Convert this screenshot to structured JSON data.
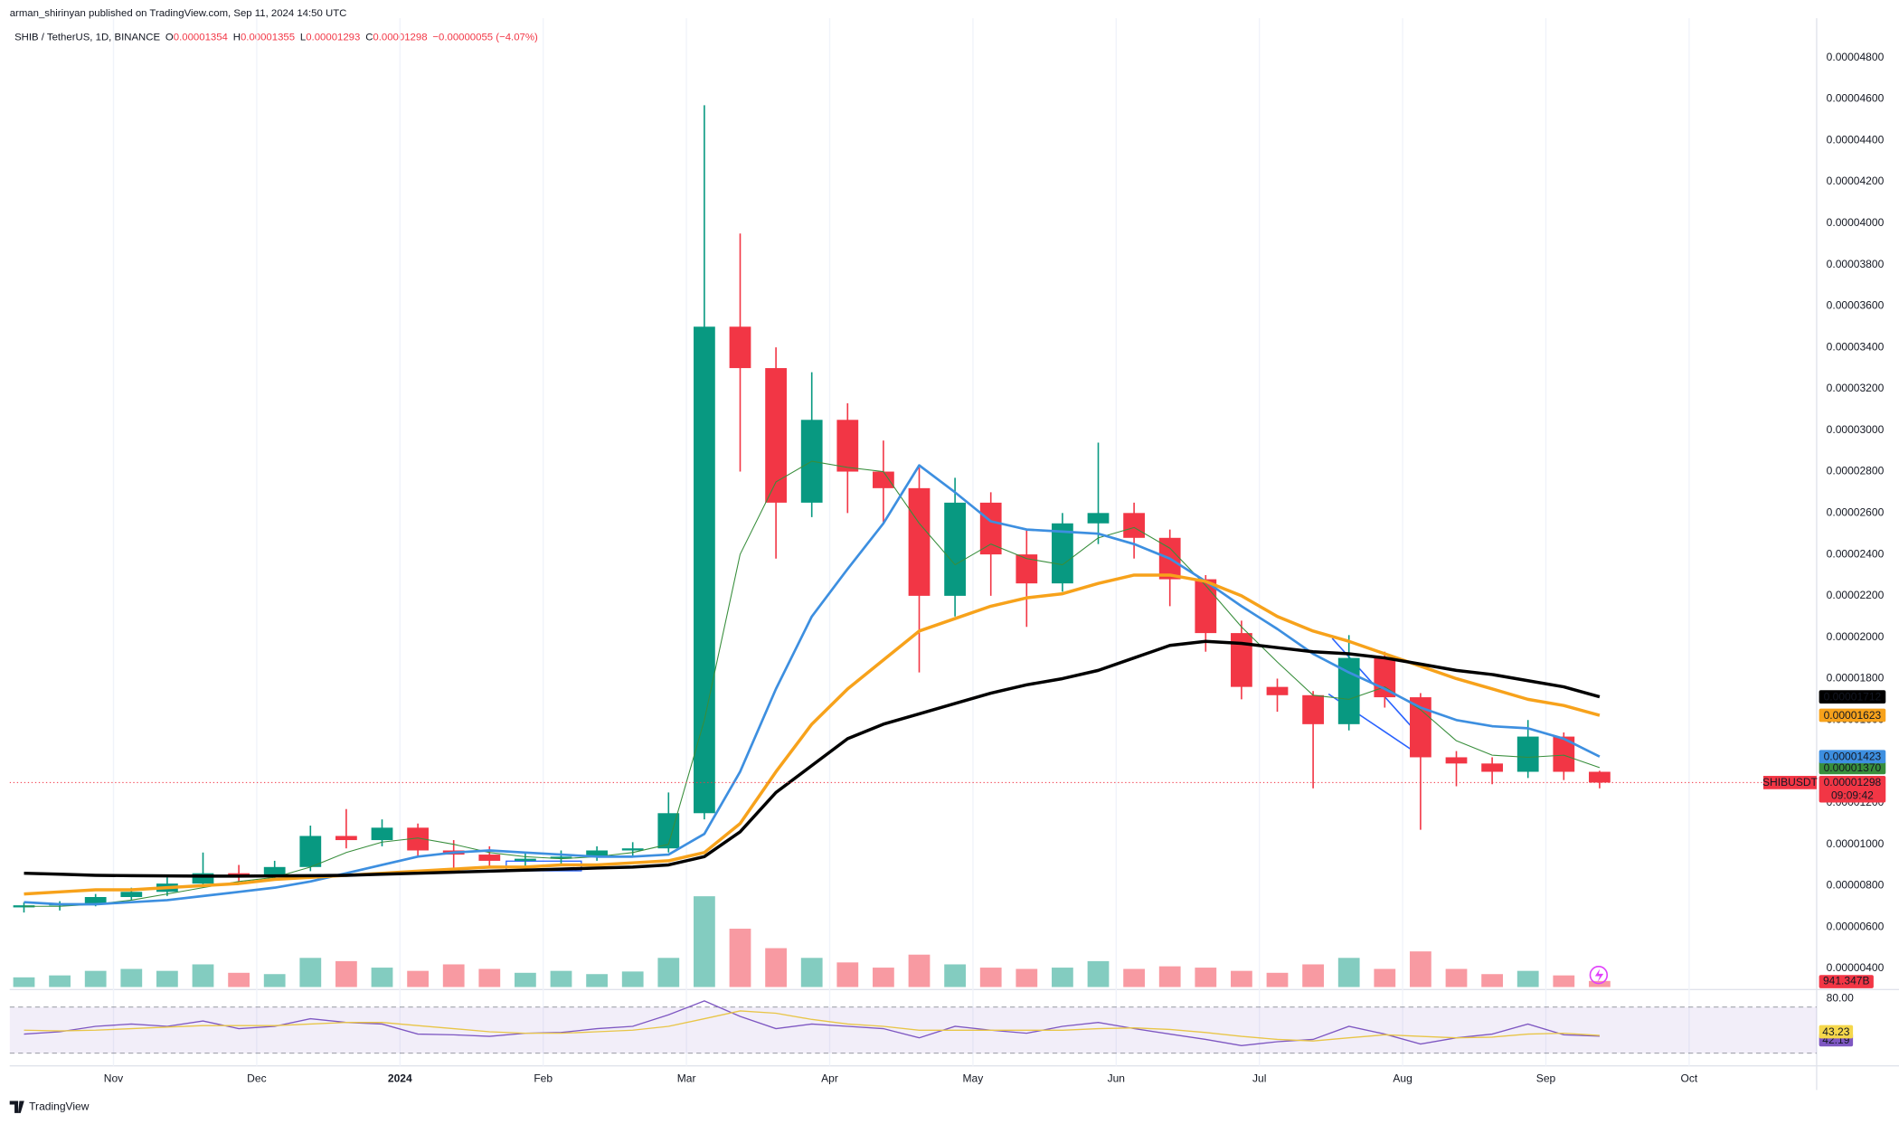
{
  "header": {
    "publisher": "arman_shirinyan published on TradingView.com, Sep 11, 2024 14:50 UTC",
    "symbol": "SHIB / TetherUS, 1D, BINANCE",
    "ohlc": [
      {
        "key": "O",
        "value": "0.00001354"
      },
      {
        "key": "H",
        "value": "0.00001355"
      },
      {
        "key": "L",
        "value": "0.00001293"
      },
      {
        "key": "C",
        "value": "0.00001298"
      }
    ],
    "change": "−0.00000055 (−4.07%)"
  },
  "chart_data": [
    {
      "type": "candlestick",
      "symbol_label": "SHIBUSDT",
      "close_label": "0.00001298",
      "countdown": "09:09:42",
      "up_color": "#089981",
      "down_color": "#f23645",
      "categories": [
        null,
        null,
        null,
        "Nov",
        null,
        null,
        null,
        "Dec",
        null,
        null,
        null,
        "2024",
        null,
        null,
        null,
        "Feb",
        null,
        null,
        null,
        "Mar",
        null,
        null,
        null,
        "Apr",
        null,
        null,
        null,
        "May",
        null,
        null,
        null,
        "Jun",
        null,
        null,
        null,
        "Jul",
        null,
        null,
        null,
        "Aug",
        null,
        null,
        null,
        "Sep",
        null,
        null,
        null,
        "Oct"
      ],
      "open": [
        6.95e-06,
        7.05e-06,
        7.1e-06,
        7.45e-06,
        7.7e-06,
        8.1e-06,
        8.6e-06,
        8.5e-06,
        8.9e-06,
        1.04e-05,
        1.02e-05,
        1.08e-05,
        9.7e-06,
        9.5e-06,
        9.2e-06,
        9.3e-06,
        9.4e-06,
        9.7e-06,
        9.8e-06,
        1.15e-05,
        3.5e-05,
        3.3e-05,
        2.65e-05,
        3.05e-05,
        2.8e-05,
        2.72e-05,
        2.2e-05,
        2.65e-05,
        2.4e-05,
        2.26e-05,
        2.55e-05,
        2.6e-05,
        2.48e-05,
        2.28e-05,
        2.02e-05,
        1.76e-05,
        1.72e-05,
        1.58e-05,
        1.9e-05,
        1.71e-05,
        1.42e-05,
        1.39e-05,
        1.35e-05,
        1.52e-05,
        1.35e-05,
        null,
        null,
        null
      ],
      "high": [
        7.2e-06,
        7.25e-06,
        7.6e-06,
        7.9e-06,
        8.4e-06,
        9.6e-06,
        9e-06,
        9.2e-06,
        1.09e-05,
        1.17e-05,
        1.12e-05,
        1.1e-05,
        1.02e-05,
        9.9e-06,
        9.6e-06,
        9.7e-06,
        9.9e-06,
        1.01e-05,
        1.25e-05,
        4.57e-05,
        3.95e-05,
        3.4e-05,
        3.28e-05,
        3.13e-05,
        2.95e-05,
        2.82e-05,
        2.77e-05,
        2.7e-05,
        2.52e-05,
        2.6e-05,
        2.94e-05,
        2.65e-05,
        2.52e-05,
        2.3e-05,
        2.08e-05,
        1.8e-05,
        1.74e-05,
        2.01e-05,
        1.93e-05,
        1.73e-05,
        1.45e-05,
        1.42e-05,
        1.6e-05,
        1.54e-05,
        1.355e-05,
        null,
        null,
        null
      ],
      "low": [
        6.7e-06,
        6.8e-06,
        7e-06,
        7.3e-06,
        7.5e-06,
        7.9e-06,
        8.2e-06,
        8.3e-06,
        8.7e-06,
        9.8e-06,
        9.9e-06,
        9.4e-06,
        8.8e-06,
        8.9e-06,
        8.7e-06,
        9e-06,
        9.2e-06,
        9.4e-06,
        9.6e-06,
        1.12e-05,
        2.8e-05,
        2.38e-05,
        2.58e-05,
        2.6e-05,
        2.55e-05,
        1.83e-05,
        2.1e-05,
        2.2e-05,
        2.05e-05,
        2.22e-05,
        2.45e-05,
        2.38e-05,
        2.15e-05,
        1.93e-05,
        1.7e-05,
        1.64e-05,
        1.27e-05,
        1.55e-05,
        1.66e-05,
        1.07e-05,
        1.28e-05,
        1.29e-05,
        1.32e-05,
        1.31e-05,
        1.27e-05,
        null,
        null,
        null
      ],
      "close": [
        7.05e-06,
        7.1e-06,
        7.45e-06,
        7.7e-06,
        8.1e-06,
        8.6e-06,
        8.5e-06,
        8.9e-06,
        1.04e-05,
        1.02e-05,
        1.08e-05,
        9.7e-06,
        9.5e-06,
        9.2e-06,
        9.3e-06,
        9.4e-06,
        9.7e-06,
        9.8e-06,
        1.15e-05,
        3.5e-05,
        3.3e-05,
        2.65e-05,
        3.05e-05,
        2.8e-05,
        2.72e-05,
        2.2e-05,
        2.65e-05,
        2.4e-05,
        2.26e-05,
        2.55e-05,
        2.6e-05,
        2.48e-05,
        2.28e-05,
        2.02e-05,
        1.76e-05,
        1.72e-05,
        1.58e-05,
        1.9e-05,
        1.71e-05,
        1.42e-05,
        1.39e-05,
        1.35e-05,
        1.52e-05,
        1.35e-05,
        1.298e-05,
        null,
        null,
        null
      ],
      "series": [
        {
          "color": "#388e3c",
          "width": 0.8,
          "end_label": "0.00001370",
          "values": [
            7e-06,
            7e-06,
            7.1e-06,
            7.3e-06,
            7.6e-06,
            7.9e-06,
            8.2e-06,
            8.4e-06,
            8.9e-06,
            9.6e-06,
            1.01e-05,
            1.03e-05,
            1e-05,
            9.6e-06,
            9.4e-06,
            9.3e-06,
            9.4e-06,
            9.6e-06,
            1e-05,
            1.6e-05,
            2.4e-05,
            2.75e-05,
            2.85e-05,
            2.82e-05,
            2.8e-05,
            2.55e-05,
            2.35e-05,
            2.45e-05,
            2.38e-05,
            2.35e-05,
            2.48e-05,
            2.53e-05,
            2.43e-05,
            2.25e-05,
            2.05e-05,
            1.88e-05,
            1.72e-05,
            1.7e-05,
            1.76e-05,
            1.65e-05,
            1.5e-05,
            1.43e-05,
            1.42e-05,
            1.43e-05,
            1.37e-05,
            null,
            null,
            null
          ]
        },
        {
          "color": "#3d8fe0",
          "width": 2,
          "end_label": "0.00001423",
          "values": [
            7.2e-06,
            7.1e-06,
            7.1e-06,
            7.2e-06,
            7.3e-06,
            7.5e-06,
            7.7e-06,
            7.9e-06,
            8.2e-06,
            8.6e-06,
            9e-06,
            9.4e-06,
            9.6e-06,
            9.7e-06,
            9.6e-06,
            9.5e-06,
            9.4e-06,
            9.4e-06,
            9.5e-06,
            1.05e-05,
            1.35e-05,
            1.75e-05,
            2.1e-05,
            2.33e-05,
            2.55e-05,
            2.83e-05,
            2.7e-05,
            2.56e-05,
            2.52e-05,
            2.51e-05,
            2.5e-05,
            2.45e-05,
            2.38e-05,
            2.27e-05,
            2.15e-05,
            2.04e-05,
            1.92e-05,
            1.83e-05,
            1.75e-05,
            1.66e-05,
            1.6e-05,
            1.57e-05,
            1.56e-05,
            1.51e-05,
            1.423e-05,
            null,
            null,
            null
          ]
        },
        {
          "color": "#f7a21b",
          "width": 2.6,
          "end_label": "0.00001623",
          "values": [
            7.6e-06,
            7.7e-06,
            7.8e-06,
            7.8e-06,
            7.9e-06,
            8e-06,
            8.1e-06,
            8.3e-06,
            8.4e-06,
            8.5e-06,
            8.6e-06,
            8.7e-06,
            8.8e-06,
            8.9e-06,
            8.9e-06,
            9e-06,
            9e-06,
            9.1e-06,
            9.2e-06,
            9.6e-06,
            1.1e-05,
            1.35e-05,
            1.58e-05,
            1.75e-05,
            1.89e-05,
            2.03e-05,
            2.09e-05,
            2.15e-05,
            2.19e-05,
            2.21e-05,
            2.26e-05,
            2.3e-05,
            2.3e-05,
            2.27e-05,
            2.2e-05,
            2.1e-05,
            2.03e-05,
            1.98e-05,
            1.92e-05,
            1.86e-05,
            1.8e-05,
            1.75e-05,
            1.7e-05,
            1.67e-05,
            1.623e-05,
            null,
            null,
            null
          ]
        },
        {
          "color": "#000000",
          "width": 2.6,
          "end_label": "0.00001712",
          "values": [
            8.6e-06,
            8.55e-06,
            8.5e-06,
            8.48e-06,
            8.47e-06,
            8.46e-06,
            8.46e-06,
            8.47e-06,
            8.48e-06,
            8.5e-06,
            8.55e-06,
            8.6e-06,
            8.65e-06,
            8.7e-06,
            8.75e-06,
            8.8e-06,
            8.85e-06,
            8.9e-06,
            9e-06,
            9.4e-06,
            1.06e-05,
            1.25e-05,
            1.38e-05,
            1.51e-05,
            1.58e-05,
            1.63e-05,
            1.68e-05,
            1.73e-05,
            1.77e-05,
            1.8e-05,
            1.84e-05,
            1.9e-05,
            1.96e-05,
            1.98e-05,
            1.97e-05,
            1.95e-05,
            1.93e-05,
            1.92e-05,
            1.9e-05,
            1.87e-05,
            1.84e-05,
            1.82e-05,
            1.79e-05,
            1.76e-05,
            1.712e-05,
            null,
            null,
            null
          ]
        }
      ],
      "ylim": [
        3.1e-06,
        4.99e-05
      ],
      "yticks": [
        {
          "value": 4e-06,
          "label": "0.00000400"
        },
        {
          "value": 6e-06,
          "label": "0.00000600"
        },
        {
          "value": 8e-06,
          "label": "0.00000800"
        },
        {
          "value": 1e-05,
          "label": "0.00001000"
        },
        {
          "value": 1.2e-05,
          "label": "0.00001200"
        },
        {
          "value": 1.4e-05,
          "label": "0.00001400"
        },
        {
          "value": 1.6e-05,
          "label": "0.00001600"
        },
        {
          "value": 1.8e-05,
          "label": "0.00001800"
        },
        {
          "value": 2e-05,
          "label": "0.00002000"
        },
        {
          "value": 2.2e-05,
          "label": "0.00002200"
        },
        {
          "value": 2.4e-05,
          "label": "0.00002400"
        },
        {
          "value": 2.6e-05,
          "label": "0.00002600"
        },
        {
          "value": 2.8e-05,
          "label": "0.00002800"
        },
        {
          "value": 3e-05,
          "label": "0.00003000"
        },
        {
          "value": 3.2e-05,
          "label": "0.00003200"
        },
        {
          "value": 3.4e-05,
          "label": "0.00003400"
        },
        {
          "value": 3.6e-05,
          "label": "0.00003600"
        },
        {
          "value": 3.8e-05,
          "label": "0.00003800"
        },
        {
          "value": 4e-05,
          "label": "0.00004000"
        },
        {
          "value": 4.2e-05,
          "label": "0.00004200"
        },
        {
          "value": 4.4e-05,
          "label": "0.00004400"
        },
        {
          "value": 4.6e-05,
          "label": "0.00004600"
        },
        {
          "value": 4.8e-05,
          "label": "0.00004800"
        }
      ],
      "grid": true
    },
    {
      "type": "bar",
      "up_color": "rgba(8,153,129,0.5)",
      "down_color": "rgba(242,54,69,0.5)",
      "label_color": "#f23645",
      "values": [
        1500000000000,
        1800000000000,
        2500000000000,
        2800000000000,
        2500000000000,
        3500000000000,
        2200000000000,
        2000000000000,
        4500000000000,
        4000000000000,
        3000000000000,
        2500000000000,
        3500000000000,
        2800000000000,
        2200000000000,
        2500000000000,
        2000000000000,
        2400000000000,
        4500000000000,
        14000000000000,
        9000000000000,
        6000000000000,
        4500000000000,
        3800000000000,
        3000000000000,
        5000000000000,
        3500000000000,
        3000000000000,
        2800000000000,
        3000000000000,
        4000000000000,
        2800000000000,
        3200000000000,
        3000000000000,
        2500000000000,
        2200000000000,
        3500000000000,
        4500000000000,
        2800000000000,
        5500000000000,
        2800000000000,
        2000000000000,
        2500000000000,
        1800000000000,
        941347000000,
        null,
        null,
        null
      ],
      "value_labels": [
        null,
        null,
        null,
        null,
        null,
        null,
        null,
        null,
        null,
        null,
        null,
        null,
        null,
        null,
        null,
        null,
        null,
        null,
        null,
        null,
        null,
        null,
        null,
        null,
        null,
        null,
        null,
        null,
        null,
        null,
        null,
        null,
        null,
        null,
        null,
        null,
        null,
        null,
        null,
        null,
        null,
        null,
        null,
        null,
        "941.347B",
        null,
        null,
        null
      ]
    },
    {
      "type": "line",
      "band": [
        20,
        80
      ],
      "band_color": "rgba(126,87,194,0.1)",
      "ylim": [
        10,
        95
      ],
      "yticks": [
        {
          "value": 80,
          "label": "80.00"
        }
      ],
      "series": [
        {
          "color": "#7e57c2",
          "label_color": "#7e57c2",
          "values": [
            45,
            48,
            55,
            58,
            55,
            62,
            52,
            55,
            65,
            60,
            58,
            45,
            44,
            42,
            46,
            47,
            52,
            55,
            70,
            88,
            68,
            52,
            58,
            55,
            52,
            40,
            55,
            50,
            46,
            55,
            60,
            52,
            45,
            38,
            30,
            35,
            38,
            55,
            45,
            32,
            40,
            45,
            58,
            44,
            42.19,
            null,
            null,
            null
          ]
        },
        {
          "color": "#e8c547",
          "label_color": "#f5d74b",
          "values": [
            50,
            49,
            50,
            52,
            54,
            56,
            56,
            56,
            58,
            60,
            60,
            56,
            52,
            48,
            46,
            46,
            48,
            50,
            55,
            65,
            75,
            72,
            64,
            58,
            55,
            50,
            50,
            50,
            50,
            50,
            52,
            53,
            51,
            47,
            42,
            38,
            36,
            40,
            44,
            42,
            40,
            41,
            45,
            46,
            43.23,
            null,
            null,
            null
          ]
        }
      ]
    }
  ],
  "footer": {
    "brand": "TradingView"
  }
}
